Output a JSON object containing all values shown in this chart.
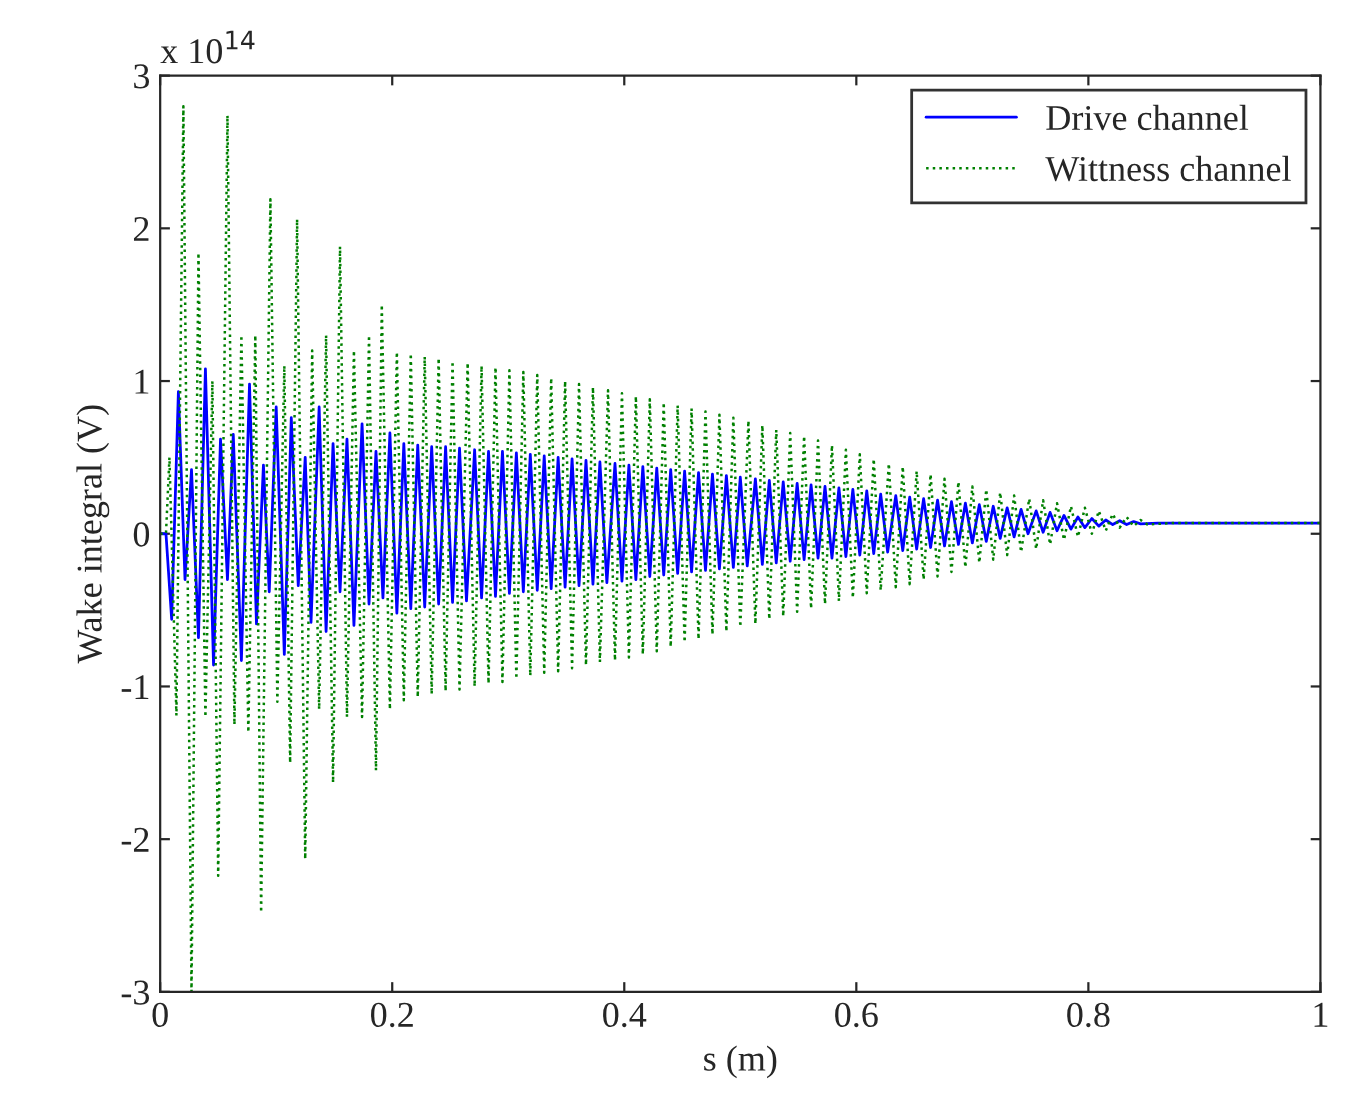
{
  "chart_data": {
    "type": "line",
    "xlabel": "s (m)",
    "ylabel": "Wake integral (V)",
    "annotations": [
      "x 10$^{14}$"
    ],
    "xlim": [
      0,
      1
    ],
    "xticks": [
      0,
      0.2,
      0.4,
      0.6,
      0.8,
      1
    ],
    "ylim": [
      -3,
      3
    ],
    "yticks": [
      -3,
      -2,
      -1,
      0,
      1,
      2,
      3
    ],
    "grid": false,
    "legend": "top right",
    "series": [
      {
        "name": "Drive channel",
        "color": "#0000ff",
        "line_style": "solid",
        "x": [
          0,
          0.005,
          0.0099,
          0.0157,
          0.0214,
          0.027,
          0.033,
          0.039,
          0.046,
          0.052,
          0.058,
          0.063,
          0.07,
          0.077,
          0.083,
          0.089,
          0.094,
          0.1,
          0.107,
          0.113,
          0.119,
          0.125,
          0.13,
          0.137,
          0.143,
          0.149,
          0.155,
          0.161,
          0.167,
          0.174,
          0.18,
          0.186,
          0.192,
          0.198,
          0.204,
          0.21,
          0.216,
          0.222,
          0.228,
          0.234,
          0.24,
          0.246,
          0.252,
          0.258,
          0.264,
          0.271,
          0.277,
          0.283,
          0.289,
          0.295,
          0.301,
          0.307,
          0.313,
          0.319,
          0.325,
          0.331,
          0.337,
          0.343,
          0.349,
          0.355,
          0.361,
          0.367,
          0.373,
          0.379,
          0.385,
          0.392,
          0.398,
          0.404,
          0.41,
          0.416,
          0.422,
          0.428,
          0.434,
          0.44,
          0.446,
          0.452,
          0.458,
          0.464,
          0.47,
          0.476,
          0.482,
          0.488,
          0.494,
          0.5,
          0.506,
          0.513,
          0.519,
          0.525,
          0.531,
          0.537,
          0.543,
          0.549,
          0.555,
          0.561,
          0.567,
          0.573,
          0.579,
          0.585,
          0.591,
          0.597,
          0.603,
          0.609,
          0.615,
          0.621,
          0.627,
          0.634,
          0.64,
          0.646,
          0.652,
          0.658,
          0.664,
          0.67,
          0.676,
          0.682,
          0.688,
          0.694,
          0.7,
          0.706,
          0.712,
          0.718,
          0.724,
          0.73,
          0.736,
          0.742,
          0.748,
          0.755,
          0.761,
          0.767,
          0.773,
          0.779,
          0.785,
          0.791,
          0.797,
          0.803,
          0.809,
          0.815,
          0.821,
          0.827,
          0.833,
          0.839,
          0.845,
          0.86,
          1.0
        ],
        "values": [
          0,
          0,
          -0.56,
          0.93,
          -0.3,
          0.42,
          -0.68,
          1.08,
          -0.86,
          0.62,
          -0.3,
          0.65,
          -0.83,
          0.98,
          -0.59,
          0.45,
          -0.38,
          0.83,
          -0.79,
          0.76,
          -0.34,
          0.5,
          -0.58,
          0.83,
          -0.64,
          0.59,
          -0.38,
          0.62,
          -0.6,
          0.72,
          -0.46,
          0.54,
          -0.42,
          0.66,
          -0.52,
          0.59,
          -0.49,
          0.58,
          -0.48,
          0.57,
          -0.46,
          0.57,
          -0.45,
          0.56,
          -0.44,
          0.55,
          -0.42,
          0.54,
          -0.41,
          0.54,
          -0.39,
          0.53,
          -0.38,
          0.52,
          -0.37,
          0.51,
          -0.36,
          0.5,
          -0.35,
          0.49,
          -0.34,
          0.48,
          -0.33,
          0.47,
          -0.32,
          0.46,
          -0.31,
          0.45,
          -0.3,
          0.44,
          -0.28,
          0.43,
          -0.27,
          0.42,
          -0.26,
          0.41,
          -0.25,
          0.4,
          -0.24,
          0.39,
          -0.23,
          0.38,
          -0.22,
          0.37,
          -0.21,
          0.36,
          -0.2,
          0.35,
          -0.19,
          0.34,
          -0.18,
          0.33,
          -0.17,
          0.32,
          -0.16,
          0.31,
          -0.16,
          0.3,
          -0.15,
          0.29,
          -0.14,
          0.28,
          -0.13,
          0.26,
          -0.12,
          0.25,
          -0.11,
          0.24,
          -0.1,
          0.23,
          -0.09,
          0.22,
          -0.08,
          0.21,
          -0.07,
          0.2,
          -0.06,
          0.19,
          -0.05,
          0.18,
          -0.03,
          0.17,
          -0.02,
          0.16,
          0.0,
          0.15,
          0.01,
          0.14,
          0.02,
          0.12,
          0.03,
          0.11,
          0.04,
          0.1,
          0.05,
          0.09,
          0.06,
          0.085,
          0.06,
          0.08,
          0.065,
          0.07,
          0.07
        ]
      },
      {
        "name": "Wittness channel",
        "color": "#008000",
        "line_style": "dotted",
        "x": [
          0,
          0.005,
          0.008,
          0.014,
          0.02,
          0.027,
          0.033,
          0.039,
          0.045,
          0.05,
          0.058,
          0.064,
          0.07,
          0.076,
          0.082,
          0.087,
          0.095,
          0.101,
          0.107,
          0.112,
          0.118,
          0.125,
          0.131,
          0.137,
          0.143,
          0.149,
          0.155,
          0.161,
          0.167,
          0.174,
          0.18,
          0.186,
          0.191,
          0.198,
          0.204,
          0.21,
          0.216,
          0.222,
          0.228,
          0.234,
          0.24,
          0.246,
          0.252,
          0.258,
          0.265,
          0.271,
          0.277,
          0.283,
          0.289,
          0.295,
          0.301,
          0.307,
          0.313,
          0.319,
          0.325,
          0.331,
          0.337,
          0.343,
          0.349,
          0.355,
          0.361,
          0.367,
          0.373,
          0.379,
          0.386,
          0.392,
          0.398,
          0.404,
          0.41,
          0.416,
          0.422,
          0.428,
          0.434,
          0.44,
          0.446,
          0.452,
          0.458,
          0.464,
          0.47,
          0.476,
          0.482,
          0.488,
          0.494,
          0.5,
          0.507,
          0.513,
          0.519,
          0.525,
          0.531,
          0.537,
          0.543,
          0.549,
          0.555,
          0.561,
          0.567,
          0.573,
          0.579,
          0.585,
          0.591,
          0.597,
          0.603,
          0.609,
          0.615,
          0.621,
          0.628,
          0.634,
          0.64,
          0.646,
          0.652,
          0.658,
          0.664,
          0.67,
          0.676,
          0.682,
          0.688,
          0.694,
          0.7,
          0.706,
          0.712,
          0.718,
          0.724,
          0.73,
          0.736,
          0.742,
          0.749,
          0.755,
          0.761,
          0.767,
          0.773,
          0.779,
          0.785,
          0.791,
          0.797,
          0.803,
          0.809,
          0.815,
          0.821,
          0.827,
          0.833,
          0.839,
          0.845,
          0.851,
          0.87,
          1.0
        ],
        "values": [
          0,
          0,
          0.5,
          -1.19,
          2.8,
          -3.0,
          1.84,
          -1.2,
          1.0,
          -2.24,
          2.74,
          -1.25,
          1.3,
          -1.3,
          1.3,
          -2.48,
          2.19,
          -1.1,
          1.1,
          -1.5,
          2.06,
          -2.13,
          1.2,
          -1.15,
          1.3,
          -1.63,
          1.88,
          -1.2,
          1.2,
          -1.2,
          1.3,
          -1.55,
          1.5,
          -1.15,
          1.19,
          -1.09,
          1.18,
          -1.07,
          1.16,
          -1.05,
          1.15,
          -1.03,
          1.13,
          -1.02,
          1.12,
          -1.0,
          1.1,
          -0.98,
          1.09,
          -0.97,
          1.07,
          -0.95,
          1.06,
          -0.93,
          1.04,
          -0.91,
          1.02,
          -0.9,
          1.0,
          -0.88,
          0.98,
          -0.86,
          0.96,
          -0.84,
          0.94,
          -0.83,
          0.92,
          -0.81,
          0.9,
          -0.79,
          0.88,
          -0.77,
          0.86,
          -0.74,
          0.84,
          -0.71,
          0.82,
          -0.69,
          0.8,
          -0.66,
          0.78,
          -0.64,
          0.76,
          -0.61,
          0.74,
          -0.59,
          0.71,
          -0.56,
          0.68,
          -0.54,
          0.66,
          -0.51,
          0.64,
          -0.49,
          0.61,
          -0.46,
          0.58,
          -0.44,
          0.55,
          -0.42,
          0.52,
          -0.39,
          0.49,
          -0.37,
          0.46,
          -0.35,
          0.44,
          -0.33,
          0.41,
          -0.3,
          0.39,
          -0.28,
          0.36,
          -0.25,
          0.34,
          -0.22,
          0.31,
          -0.19,
          0.29,
          -0.17,
          0.27,
          -0.14,
          0.25,
          -0.12,
          0.23,
          -0.1,
          0.22,
          -0.07,
          0.2,
          -0.04,
          0.18,
          -0.02,
          0.17,
          0.0,
          0.15,
          0.02,
          0.13,
          0.04,
          0.11,
          0.05,
          0.09,
          0.06,
          0.07,
          0.07
        ]
      }
    ]
  }
}
